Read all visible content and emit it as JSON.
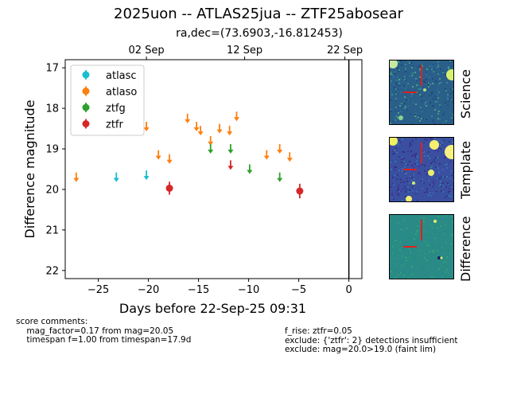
{
  "header": {
    "title": "2025uon -- ATLAS25jua -- ZTF25abosear",
    "subtitle": "ra,dec=(73.6903,-16.812453)"
  },
  "chart_data": {
    "type": "scatter",
    "xlabel": "Days before 22-Sep-25 09:31",
    "ylabel": "Difference magnitude",
    "xlim": [
      -28.3,
      1.3
    ],
    "ylim": [
      22.2,
      16.8
    ],
    "y_inverted": true,
    "x_ticks": [
      -25,
      -20,
      -15,
      -10,
      -5,
      0
    ],
    "x_tick_labels": [
      "−25",
      "−20",
      "−15",
      "−10",
      "−5",
      "0"
    ],
    "y_ticks": [
      17,
      18,
      19,
      20,
      21,
      22
    ],
    "y_tick_labels": [
      "17",
      "18",
      "19",
      "20",
      "21",
      "22"
    ],
    "top_axis_ticks": [
      {
        "x": -20.2,
        "label": "02 Sep"
      },
      {
        "x": -10.4,
        "label": "12 Sep"
      },
      {
        "x": -0.4,
        "label": "22 Sep"
      }
    ],
    "reference_line_x": 0,
    "legend_position": "top-left",
    "series": [
      {
        "name": "atlasc",
        "color": "#17becf",
        "points": [],
        "upper_limits": [
          {
            "x": -23.2,
            "y": 19.7
          },
          {
            "x": -20.2,
            "y": 19.65
          }
        ]
      },
      {
        "name": "atlaso",
        "color": "#ff7f0e",
        "points": [],
        "upper_limits": [
          {
            "x": -27.2,
            "y": 19.7
          },
          {
            "x": -20.2,
            "y": 18.45
          },
          {
            "x": -19.0,
            "y": 19.15
          },
          {
            "x": -17.9,
            "y": 19.25
          },
          {
            "x": -16.1,
            "y": 18.25
          },
          {
            "x": -15.2,
            "y": 18.45
          },
          {
            "x": -14.8,
            "y": 18.55
          },
          {
            "x": -13.8,
            "y": 18.8
          },
          {
            "x": -12.9,
            "y": 18.5
          },
          {
            "x": -11.9,
            "y": 18.55
          },
          {
            "x": -11.2,
            "y": 18.2
          },
          {
            "x": -8.2,
            "y": 19.15
          },
          {
            "x": -6.9,
            "y": 19.0
          },
          {
            "x": -5.9,
            "y": 19.2
          }
        ]
      },
      {
        "name": "ztfg",
        "color": "#2ca02c",
        "points": [],
        "upper_limits": [
          {
            "x": -13.8,
            "y": 19.0
          },
          {
            "x": -11.8,
            "y": 19.0
          },
          {
            "x": -9.9,
            "y": 19.5
          },
          {
            "x": -6.9,
            "y": 19.7
          }
        ]
      },
      {
        "name": "ztfr",
        "color": "#d62728",
        "points": [
          {
            "x": -17.9,
            "y": 19.97,
            "err": 0.16
          },
          {
            "x": -4.9,
            "y": 20.04,
            "err": 0.18
          }
        ],
        "upper_limits": [
          {
            "x": -11.8,
            "y": 19.4
          }
        ]
      }
    ]
  },
  "stamps": [
    {
      "label": "Science"
    },
    {
      "label": "Template"
    },
    {
      "label": "Difference"
    }
  ],
  "comments": {
    "left": "score comments:\n    mag_factor=0.17 from mag=20.05\n    timespan f=1.00 from timespan=17.9d",
    "right": "f_rise: ztfr=0.05\nexclude: {'ztfr': 2} detections insufficient\nexclude: mag=20.0>19.0 (faint lim)"
  },
  "colors": {
    "science_bg": "#2a5f8a",
    "template_bg": "#3a4fa0",
    "difference_bg": "#2a8a86",
    "marker_cross": "#e0201c"
  }
}
